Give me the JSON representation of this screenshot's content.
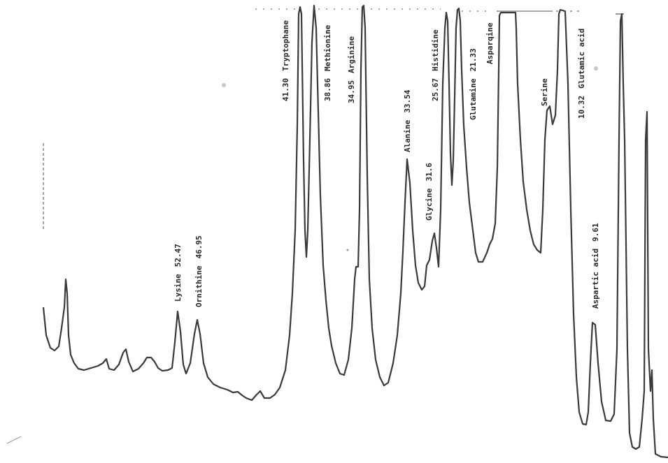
{
  "chart_data": {
    "type": "line",
    "orientation": "rotated-90",
    "trace_color": "#3a3a3a",
    "background_color": "#ffffff",
    "grid": false,
    "series": [
      {
        "peaks": [
          {
            "label": "Lysine",
            "value": "52.47"
          },
          {
            "label": "Ornithine",
            "value": "46.95"
          },
          {
            "label": "Tryptophane",
            "value": "41.30"
          },
          {
            "label": "Methionine",
            "value": "38.86"
          },
          {
            "label": "Arginine",
            "value": "34.95"
          },
          {
            "label": "Alanine",
            "value": "33.54"
          },
          {
            "label": "Glycine",
            "value": "31.6"
          },
          {
            "label": "Histidine",
            "value": "25.67"
          },
          {
            "label": "Glutamine",
            "value": "21.33"
          },
          {
            "label": "Asparqine",
            "value": ""
          },
          {
            "label": "Serine",
            "value": ""
          },
          {
            "label": "Glutamic acid",
            "value": "10.32"
          },
          {
            "label": "Aspartic acid",
            "value": "9.61"
          }
        ]
      }
    ]
  }
}
